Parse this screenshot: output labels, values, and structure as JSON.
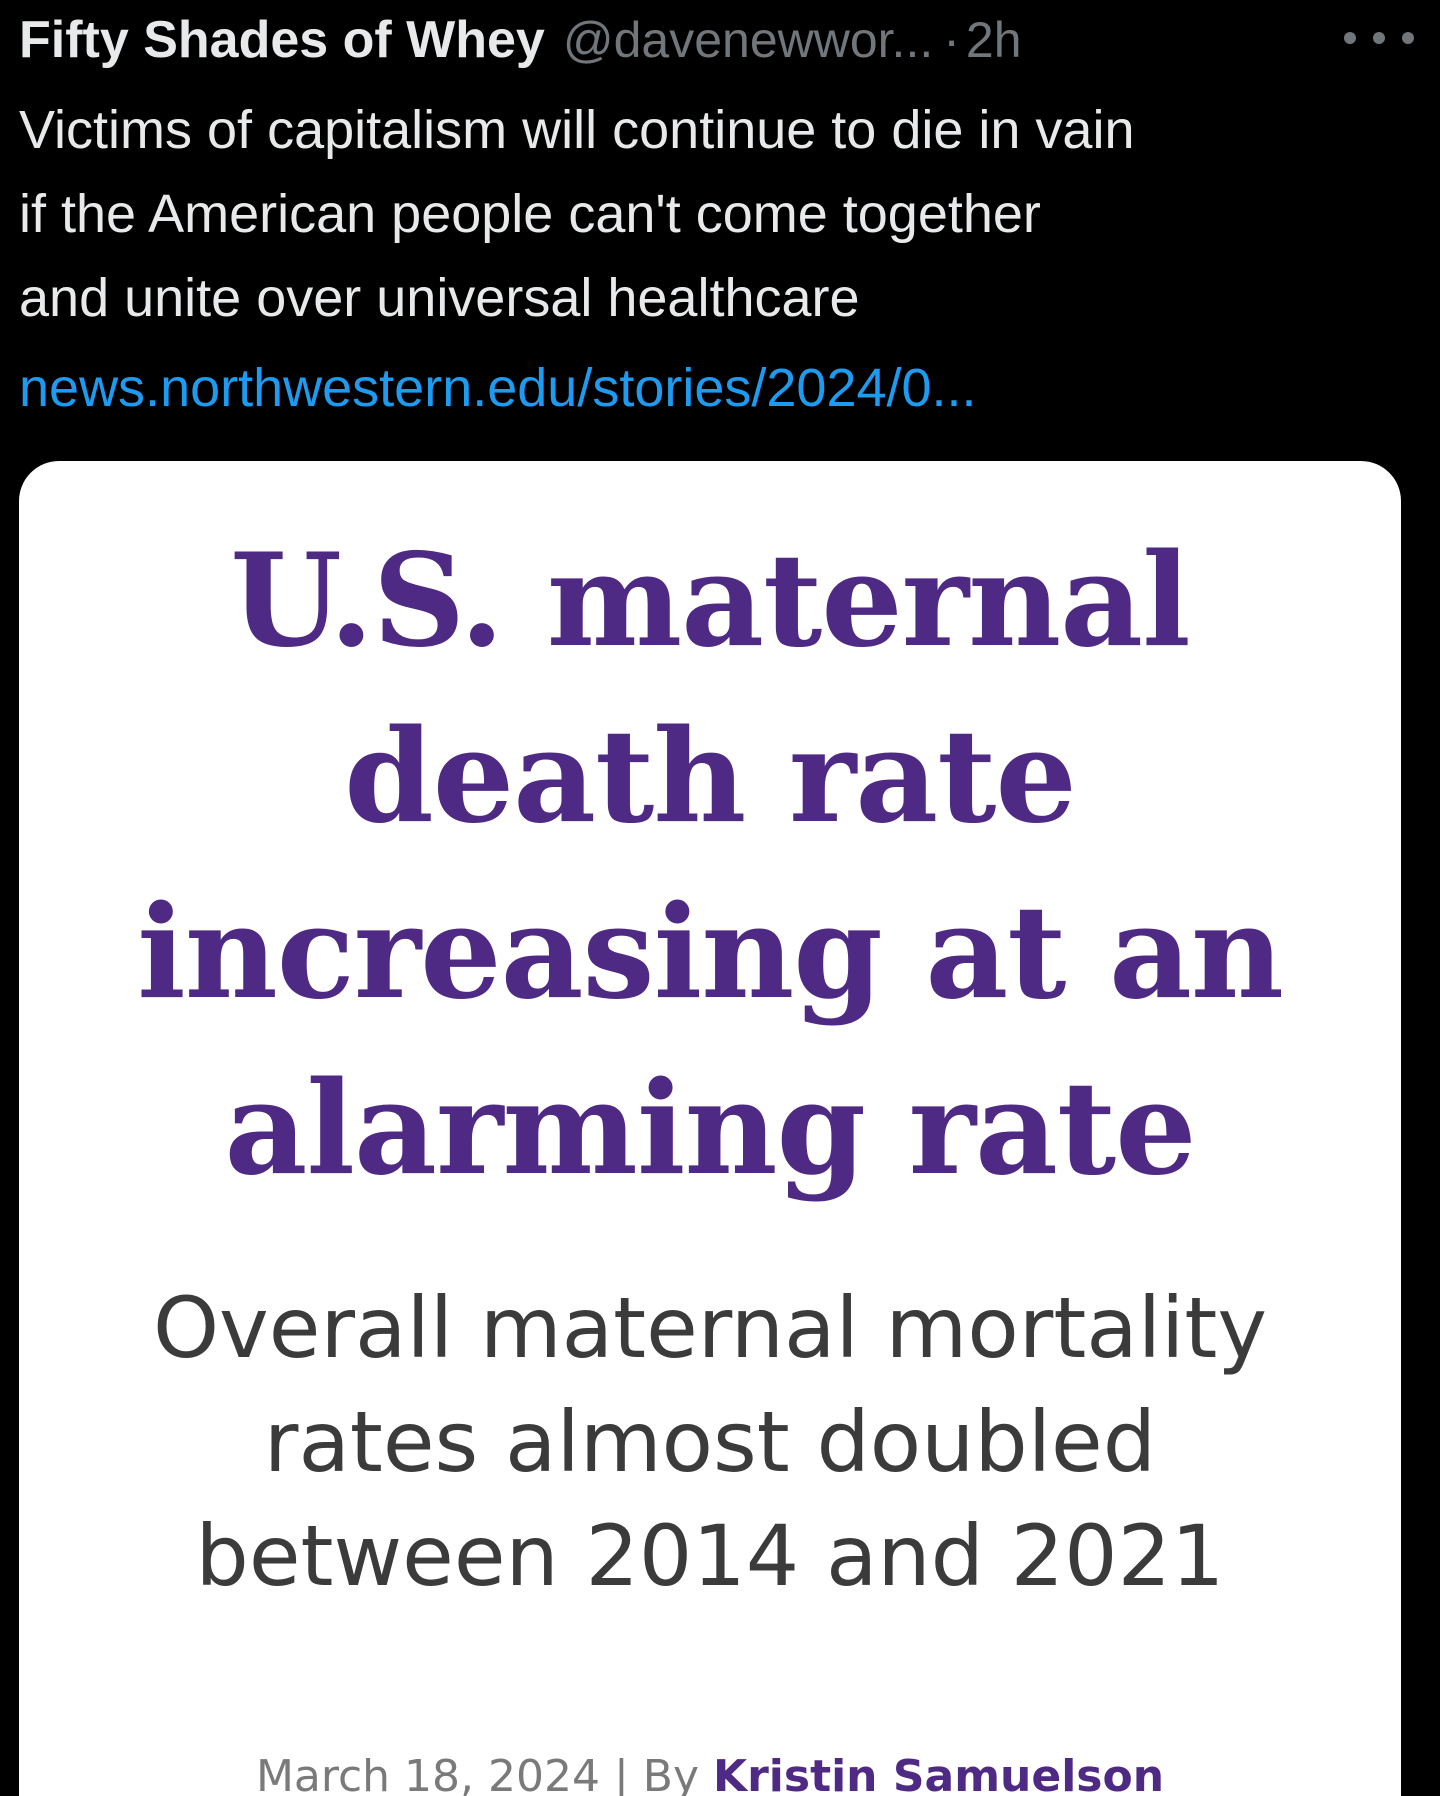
{
  "tweet": {
    "display_name": "Fifty Shades of Whey",
    "handle": "@davenewwor...",
    "separator": "·",
    "time": "2h",
    "text_lines": [
      "Victims of capitalism will continue to die in vain",
      "if the American people can't come together",
      "and unite over universal healthcare"
    ],
    "link": "news.northwestern.edu/stories/2024/0..."
  },
  "card": {
    "headline_lines": [
      "U.S. maternal",
      "death rate",
      "increasing at an",
      "alarming rate"
    ],
    "subhead_lines": [
      "Overall maternal mortality",
      "rates almost doubled",
      "between 2014 and 2021"
    ],
    "byline_prefix": "March 18, 2024 | By ",
    "author": "Kristin Samuelson"
  },
  "icons": {
    "more": "more-horizontal-icon"
  },
  "colors": {
    "background": "#000000",
    "text": "#e7e9ea",
    "muted": "#71767b",
    "link": "#1d9bf0",
    "headline_purple": "#4e2a84"
  }
}
